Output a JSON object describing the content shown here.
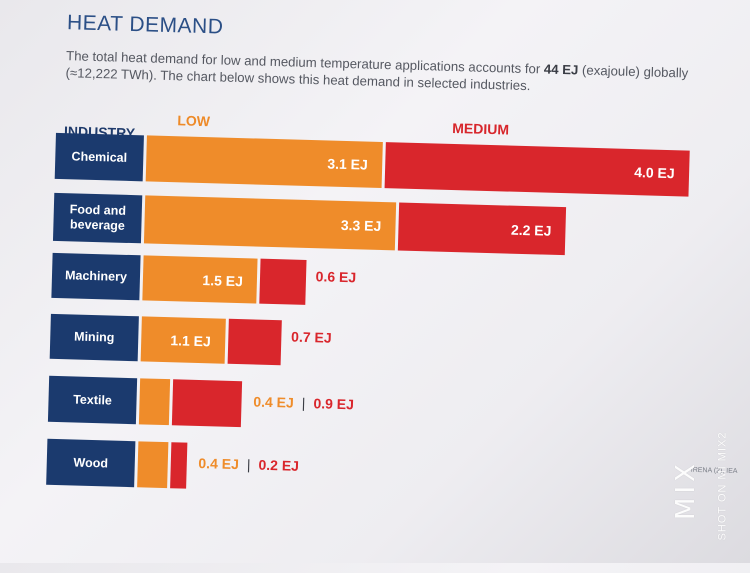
{
  "title": "HEAT DEMAND",
  "subtitle_parts": {
    "before": "The total heat demand for low and medium temperature applications accounts for ",
    "bold": "44 EJ",
    "after": " (exajoule) globally (≈12,222 TWh). The chart below shows this heat demand in selected industries."
  },
  "headers": {
    "industry": "INDUSTRY",
    "low": "LOW",
    "medium": "MEDIUM"
  },
  "source_fragment": "IRENA (2), IEA",
  "watermark": {
    "mix": "MIX",
    "shot": "SHOT ON MI MIX2"
  },
  "colors": {
    "low": "#ef8c2a",
    "medium": "#d9262c",
    "industry": "#1b3a6e",
    "title": "#2b4f86"
  },
  "chart_data": {
    "type": "bar",
    "orientation": "horizontal",
    "stacked": true,
    "unit": "EJ",
    "categories": [
      "Chemical",
      "Food and beverage",
      "Machinery",
      "Mining",
      "Textile",
      "Wood"
    ],
    "series": [
      {
        "name": "LOW",
        "values": [
          3.1,
          3.3,
          1.5,
          1.1,
          0.4,
          0.4
        ]
      },
      {
        "name": "MEDIUM",
        "values": [
          4.0,
          2.2,
          0.6,
          0.7,
          0.9,
          0.2
        ]
      }
    ],
    "labels": [
      {
        "low": "3.1 EJ",
        "medium": "4.0 EJ"
      },
      {
        "low": "3.3 EJ",
        "medium": "2.2 EJ"
      },
      {
        "low": "1.5 EJ",
        "medium": "0.6 EJ"
      },
      {
        "low": "1.1 EJ",
        "medium": "0.7 EJ"
      },
      {
        "low": "0.4 EJ",
        "medium": "0.9 EJ"
      },
      {
        "low": "0.4 EJ",
        "medium": "0.2 EJ"
      }
    ]
  }
}
